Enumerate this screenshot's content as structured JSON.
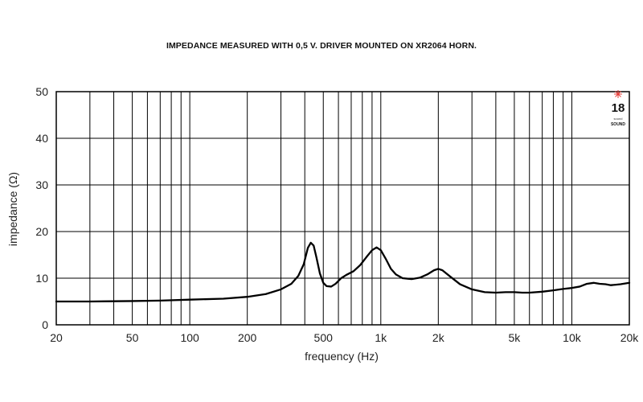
{
  "chart_data": {
    "type": "line",
    "title": "IMPEDANCE MEASURED WITH 0,5 V. DRIVER MOUNTED ON XR2064 HORN.",
    "xlabel": "frequency (Hz)",
    "ylabel": "impedance (Ω)",
    "xscale": "log",
    "xlim": [
      20,
      20000
    ],
    "ylim": [
      0,
      50
    ],
    "grid": true,
    "x_ticks": [
      {
        "value": 20,
        "label": "20"
      },
      {
        "value": 50,
        "label": "50"
      },
      {
        "value": 100,
        "label": "100"
      },
      {
        "value": 200,
        "label": "200"
      },
      {
        "value": 500,
        "label": "500"
      },
      {
        "value": 1000,
        "label": "1k"
      },
      {
        "value": 2000,
        "label": "2k"
      },
      {
        "value": 5000,
        "label": "5k"
      },
      {
        "value": 10000,
        "label": "10k"
      },
      {
        "value": 20000,
        "label": "20k"
      }
    ],
    "y_ticks": [
      {
        "value": 0,
        "label": "0"
      },
      {
        "value": 10,
        "label": "10"
      },
      {
        "value": 20,
        "label": "20"
      },
      {
        "value": 30,
        "label": "30"
      },
      {
        "value": 40,
        "label": "40"
      },
      {
        "value": 50,
        "label": "50"
      }
    ],
    "series": [
      {
        "color": "#000000",
        "points": [
          [
            20,
            5.0
          ],
          [
            30,
            5.0
          ],
          [
            50,
            5.1
          ],
          [
            70,
            5.2
          ],
          [
            100,
            5.4
          ],
          [
            150,
            5.6
          ],
          [
            200,
            6.0
          ],
          [
            250,
            6.6
          ],
          [
            300,
            7.6
          ],
          [
            340,
            8.8
          ],
          [
            370,
            10.5
          ],
          [
            395,
            13.0
          ],
          [
            415,
            16.5
          ],
          [
            430,
            17.6
          ],
          [
            445,
            17.0
          ],
          [
            460,
            14.5
          ],
          [
            480,
            11.0
          ],
          [
            500,
            9.0
          ],
          [
            520,
            8.3
          ],
          [
            550,
            8.2
          ],
          [
            580,
            8.8
          ],
          [
            620,
            10.0
          ],
          [
            660,
            10.7
          ],
          [
            720,
            11.5
          ],
          [
            780,
            12.8
          ],
          [
            840,
            14.5
          ],
          [
            900,
            16.0
          ],
          [
            950,
            16.6
          ],
          [
            1000,
            16.0
          ],
          [
            1060,
            14.2
          ],
          [
            1130,
            12.0
          ],
          [
            1200,
            10.8
          ],
          [
            1300,
            10.0
          ],
          [
            1450,
            9.8
          ],
          [
            1600,
            10.1
          ],
          [
            1750,
            10.8
          ],
          [
            1900,
            11.7
          ],
          [
            2000,
            12.0
          ],
          [
            2100,
            11.7
          ],
          [
            2300,
            10.4
          ],
          [
            2600,
            8.7
          ],
          [
            3000,
            7.6
          ],
          [
            3500,
            7.0
          ],
          [
            4000,
            6.9
          ],
          [
            4500,
            7.0
          ],
          [
            5000,
            7.0
          ],
          [
            5500,
            6.9
          ],
          [
            6000,
            6.9
          ],
          [
            7000,
            7.1
          ],
          [
            8000,
            7.4
          ],
          [
            9000,
            7.7
          ],
          [
            10000,
            7.9
          ],
          [
            11000,
            8.2
          ],
          [
            12000,
            8.8
          ],
          [
            13000,
            9.0
          ],
          [
            14000,
            8.8
          ],
          [
            15000,
            8.7
          ],
          [
            16000,
            8.5
          ],
          [
            17000,
            8.6
          ],
          [
            18000,
            8.7
          ],
          [
            20000,
            9.0
          ]
        ]
      }
    ]
  },
  "logo": {
    "number": "18",
    "small_text": "sound",
    "brand": "SOUND",
    "accent_color": "#e53935"
  }
}
